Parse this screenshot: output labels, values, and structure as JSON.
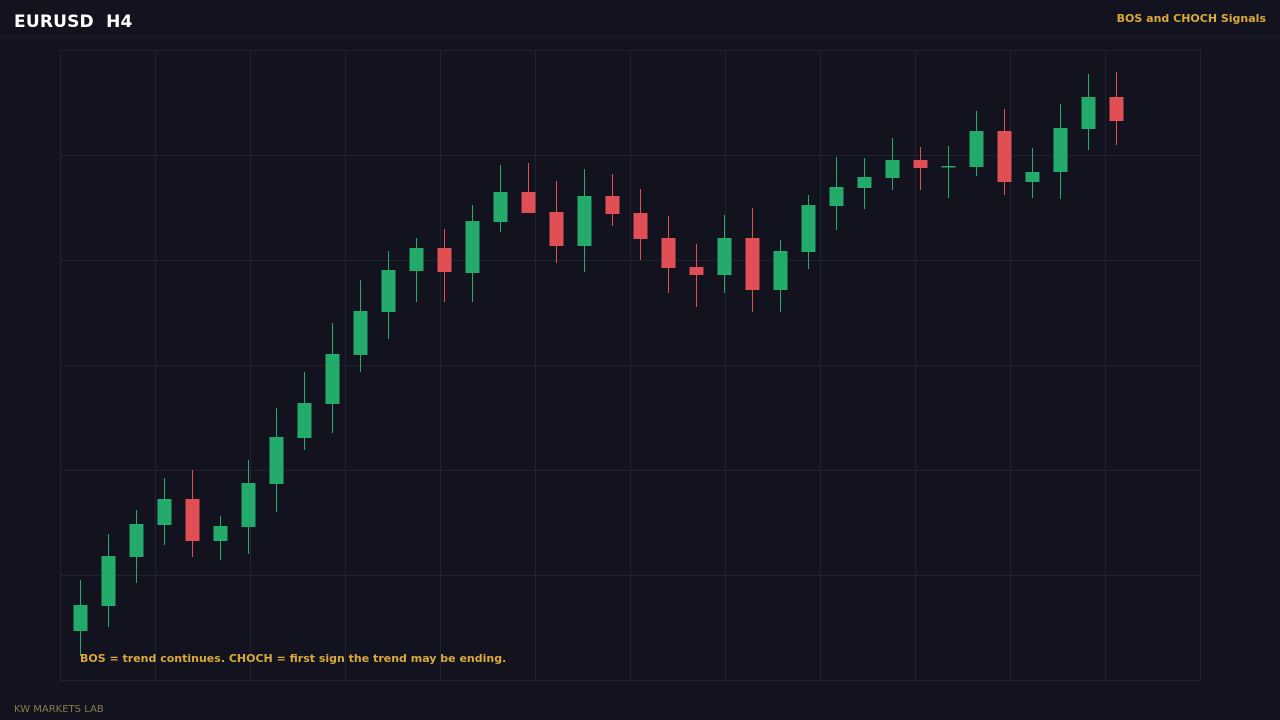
{
  "header": {
    "symbol": "EURUSD  H4",
    "badge": "BOS and CHOCH Signals"
  },
  "footer": {
    "note": "BOS = trend continues. CHOCH = first sign the trend may be ending.",
    "brand": "KW MARKETS LAB"
  },
  "colors": {
    "background": "#131320",
    "grid": "#21212f",
    "bull": "#22ab6b",
    "bear": "#e04f54"
  },
  "chart_data": {
    "type": "candlestick",
    "title": "EURUSD  H4",
    "xlabel": "",
    "ylabel": "",
    "ylim": [
      0,
      630
    ],
    "grid": true,
    "candles": [
      {
        "o": 49,
        "h": 100,
        "l": 24,
        "c": 75
      },
      {
        "o": 74,
        "h": 146,
        "l": 53,
        "c": 124
      },
      {
        "o": 123,
        "h": 170,
        "l": 97,
        "c": 156
      },
      {
        "o": 155,
        "h": 202,
        "l": 135,
        "c": 181
      },
      {
        "o": 181,
        "h": 210,
        "l": 123,
        "c": 139
      },
      {
        "o": 139,
        "h": 164,
        "l": 120,
        "c": 154
      },
      {
        "o": 153,
        "h": 220,
        "l": 126,
        "c": 197
      },
      {
        "o": 196,
        "h": 272,
        "l": 168,
        "c": 243
      },
      {
        "o": 242,
        "h": 308,
        "l": 230,
        "c": 277
      },
      {
        "o": 276,
        "h": 357,
        "l": 247,
        "c": 326
      },
      {
        "o": 325,
        "h": 400,
        "l": 308,
        "c": 369
      },
      {
        "o": 368,
        "h": 429,
        "l": 341,
        "c": 410
      },
      {
        "o": 409,
        "h": 442,
        "l": 378,
        "c": 432
      },
      {
        "o": 432,
        "h": 451,
        "l": 378,
        "c": 408
      },
      {
        "o": 407,
        "h": 475,
        "l": 378,
        "c": 459
      },
      {
        "o": 458,
        "h": 515,
        "l": 448,
        "c": 488
      },
      {
        "o": 488,
        "h": 517,
        "l": 467,
        "c": 467
      },
      {
        "o": 468,
        "h": 499,
        "l": 417,
        "c": 434
      },
      {
        "o": 434,
        "h": 511,
        "l": 408,
        "c": 484
      },
      {
        "o": 484,
        "h": 506,
        "l": 454,
        "c": 466
      },
      {
        "o": 467,
        "h": 491,
        "l": 420,
        "c": 441
      },
      {
        "o": 442,
        "h": 464,
        "l": 387,
        "c": 412
      },
      {
        "o": 413,
        "h": 436,
        "l": 373,
        "c": 405
      },
      {
        "o": 405,
        "h": 465,
        "l": 387,
        "c": 442
      },
      {
        "o": 442,
        "h": 472,
        "l": 368,
        "c": 390
      },
      {
        "o": 390,
        "h": 440,
        "l": 368,
        "c": 429
      },
      {
        "o": 428,
        "h": 485,
        "l": 411,
        "c": 475
      },
      {
        "o": 474,
        "h": 523,
        "l": 450,
        "c": 493
      },
      {
        "o": 492,
        "h": 522,
        "l": 471,
        "c": 503
      },
      {
        "o": 502,
        "h": 542,
        "l": 490,
        "c": 520
      },
      {
        "o": 520,
        "h": 533,
        "l": 490,
        "c": 512
      },
      {
        "o": 513,
        "h": 534,
        "l": 482,
        "c": 514
      },
      {
        "o": 513,
        "h": 569,
        "l": 504,
        "c": 549
      },
      {
        "o": 549,
        "h": 571,
        "l": 485,
        "c": 498
      },
      {
        "o": 498,
        "h": 532,
        "l": 482,
        "c": 508
      },
      {
        "o": 508,
        "h": 576,
        "l": 481,
        "c": 552
      },
      {
        "o": 551,
        "h": 606,
        "l": 530,
        "c": 583
      },
      {
        "o": 583,
        "h": 608,
        "l": 535,
        "c": 559
      }
    ]
  }
}
